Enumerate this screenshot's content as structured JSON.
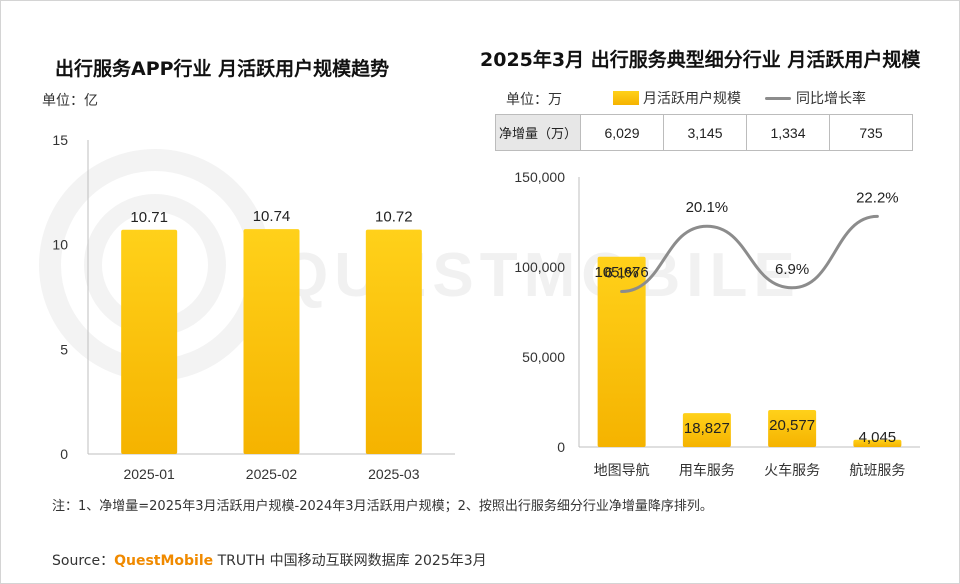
{
  "watermark": "QUESTMOBILE",
  "left_chart": {
    "unit_label": "单位：亿"
  },
  "right_chart": {
    "unit_label": "单位：万",
    "legend": {
      "bar": "月活跃用户规模",
      "line": "同比增长率"
    },
    "net_increase": {
      "header": "净增量（万）",
      "values": [
        "6,029",
        "3,145",
        "1,334",
        "735"
      ]
    }
  },
  "footnote": "注：1、净增量=2025年3月活跃用户规模-2024年3月活跃用户规模；2、按照出行服务细分行业净增量降序排列。",
  "source": {
    "prefix": "Source：",
    "brand": "QuestMobile",
    "suffix": " TRUTH 中国移动互联网数据库 2025年3月"
  },
  "colors": {
    "bar_top": "#ffd11a",
    "bar_bottom": "#f5b300",
    "line": "#8c8c8c",
    "axis": "#bfbfbf",
    "brand": "#f08a00"
  },
  "chart_data": [
    {
      "type": "bar",
      "title": "出行服务APP行业 月活跃用户规模趋势",
      "categories": [
        "2025-01",
        "2025-02",
        "2025-03"
      ],
      "values": [
        10.71,
        10.74,
        10.72
      ],
      "value_labels": [
        "10.71",
        "10.74",
        "10.72"
      ],
      "ylabel": "亿",
      "ylim": [
        0,
        15
      ],
      "yticks": [
        0,
        5,
        10,
        15
      ],
      "ytick_labels": [
        "0",
        "5",
        "10",
        "15"
      ]
    },
    {
      "type": "bar",
      "title": "2025年3月 出行服务典型细分行业 月活跃用户规模",
      "categories": [
        "地图导航",
        "用车服务",
        "火车服务",
        "航班服务"
      ],
      "series": [
        {
          "name": "月活跃用户规模",
          "type": "bar",
          "values": [
            105676,
            18827,
            20577,
            4045
          ],
          "labels": [
            "105,676",
            "18,827",
            "20,577",
            "4,045"
          ]
        },
        {
          "name": "同比增长率",
          "type": "line",
          "values": [
            6.1,
            20.1,
            6.9,
            22.2
          ],
          "labels": [
            "6.1%",
            "20.1%",
            "6.9%",
            "22.2%"
          ]
        }
      ],
      "ylabel": "万",
      "ylim": [
        0,
        150000
      ],
      "yticks": [
        0,
        50000,
        100000,
        150000
      ],
      "ytick_labels": [
        "0",
        "50,000",
        "100,000",
        "150,000"
      ]
    }
  ]
}
